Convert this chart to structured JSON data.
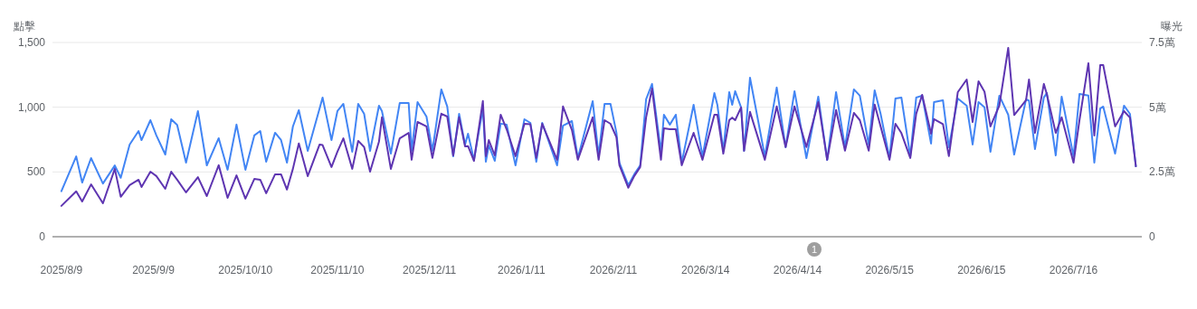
{
  "chart_data": {
    "type": "line",
    "ylabel": "點擊",
    "y2label": "曝光",
    "x": [
      "2025-08-09",
      "2025-08-14",
      "2025-08-16",
      "2025-08-19",
      "2025-08-23",
      "2025-08-27",
      "2025-08-29",
      "2025-09-01",
      "2025-09-04",
      "2025-09-05",
      "2025-09-08",
      "2025-09-10",
      "2025-09-13",
      "2025-09-15",
      "2025-09-17",
      "2025-09-20",
      "2025-09-24",
      "2025-09-27",
      "2025-10-01",
      "2025-10-04",
      "2025-10-07",
      "2025-10-10",
      "2025-10-13",
      "2025-10-15",
      "2025-10-17",
      "2025-10-20",
      "2025-10-22",
      "2025-10-24",
      "2025-10-26",
      "2025-10-28",
      "2025-10-31",
      "2025-11-04",
      "2025-11-05",
      "2025-11-08",
      "2025-11-10",
      "2025-11-12",
      "2025-11-15",
      "2025-11-17",
      "2025-11-19",
      "2025-11-21",
      "2025-11-24",
      "2025-11-25",
      "2025-11-28",
      "2025-12-01",
      "2025-12-04",
      "2025-12-05",
      "2025-12-07",
      "2025-12-10",
      "2025-12-12",
      "2025-12-15",
      "2025-12-17",
      "2025-12-19",
      "2025-12-21",
      "2025-12-23",
      "2025-12-24",
      "2025-12-26",
      "2025-12-29",
      "2025-12-30",
      "2025-12-31",
      "2026-01-02",
      "2026-01-04",
      "2026-01-06",
      "2026-01-09",
      "2026-01-12",
      "2026-01-14",
      "2026-01-16",
      "2026-01-18",
      "2026-01-23",
      "2026-01-25",
      "2026-01-28",
      "2026-01-30",
      "2026-02-04",
      "2026-02-06",
      "2026-02-08",
      "2026-02-10",
      "2026-02-12",
      "2026-02-13",
      "2026-02-16",
      "2026-02-18",
      "2026-02-20",
      "2026-02-22",
      "2026-02-24",
      "2026-02-27",
      "2026-02-28",
      "2026-03-02",
      "2026-03-04",
      "2026-03-06",
      "2026-03-10",
      "2026-03-13",
      "2026-03-17",
      "2026-03-18",
      "2026-03-20",
      "2026-03-22",
      "2026-03-23",
      "2026-03-24",
      "2026-03-26",
      "2026-03-27",
      "2026-03-29",
      "2026-04-03",
      "2026-04-07",
      "2026-04-10",
      "2026-04-13",
      "2026-04-17",
      "2026-04-21",
      "2026-04-24",
      "2026-04-27",
      "2026-04-30",
      "2026-05-03",
      "2026-05-05",
      "2026-05-08",
      "2026-05-10",
      "2026-05-12",
      "2026-05-15",
      "2026-05-17",
      "2026-05-19",
      "2026-05-22",
      "2026-05-24",
      "2026-05-26",
      "2026-05-29",
      "2026-05-30",
      "2026-06-02",
      "2026-06-04",
      "2026-06-07",
      "2026-06-10",
      "2026-06-12",
      "2026-06-14",
      "2026-06-16",
      "2026-06-18",
      "2026-06-21",
      "2026-06-24",
      "2026-06-26",
      "2026-06-30",
      "2026-07-01",
      "2026-07-03",
      "2026-07-06",
      "2026-07-07",
      "2026-07-10",
      "2026-07-12",
      "2026-07-16",
      "2026-07-18",
      "2026-07-21",
      "2026-07-23",
      "2026-07-25",
      "2026-07-26",
      "2026-07-30",
      "2026-08-02",
      "2026-08-04",
      "2026-08-06"
    ],
    "series": [
      {
        "color": "#4285f4",
        "values": [
          351,
          620,
          418,
          607,
          411,
          550,
          455,
          712,
          816,
          746,
          900,
          782,
          635,
          907,
          863,
          572,
          970,
          551,
          761,
          517,
          866,
          517,
          782,
          816,
          579,
          803,
          747,
          572,
          851,
          977,
          663,
          991,
          1075,
          747,
          970,
          1026,
          656,
          1026,
          949,
          663,
          1012,
          970,
          642,
          1033,
          1033,
          663,
          1040,
          928,
          663,
          1138,
          1005,
          621,
          949,
          712,
          796,
          593,
          991,
          579,
          705,
          586,
          873,
          866,
          551,
          907,
          879,
          579,
          879,
          551,
          858,
          893,
          607,
          1047,
          628,
          1026,
          1026,
          803,
          572,
          398,
          482,
          551,
          1061,
          1180,
          656,
          942,
          866,
          942,
          572,
          1019,
          621,
          1110,
          1019,
          663,
          1117,
          1019,
          1124,
          998,
          663,
          1228,
          621,
          1152,
          691,
          1124,
          607,
          1082,
          593,
          1117,
          691,
          1138,
          1089,
          712,
          1131,
          949,
          607,
          1068,
          1075,
          621,
          1075,
          1089,
          719,
          1040,
          1054,
          691,
          1068,
          1012,
          712,
          1040,
          1000,
          656,
          1089,
          942,
          635,
          1061,
          1050,
          677,
          1075,
          1110,
          628,
          1082,
          621,
          1103,
          1090,
          572,
          990,
          1005,
          642,
          1012,
          949,
          544
        ]
      },
      {
        "color": "#5e35b1",
        "axis": "y2",
        "values": [
          1.19,
          1.75,
          1.36,
          2.02,
          1.29,
          2.62,
          1.54,
          1.99,
          2.2,
          1.92,
          2.51,
          2.34,
          1.85,
          2.51,
          2.2,
          1.71,
          2.3,
          1.57,
          2.76,
          1.5,
          2.37,
          1.47,
          2.23,
          2.2,
          1.68,
          2.41,
          2.41,
          1.82,
          2.62,
          3.6,
          2.34,
          3.56,
          3.54,
          2.69,
          3.28,
          3.8,
          2.62,
          3.7,
          3.46,
          2.51,
          3.67,
          4.61,
          2.62,
          3.8,
          4.01,
          2.97,
          4.43,
          4.26,
          3.04,
          4.75,
          4.64,
          3.14,
          4.61,
          3.49,
          3.5,
          2.93,
          5.24,
          3.11,
          3.73,
          3.14,
          4.71,
          4.15,
          3.11,
          4.36,
          4.34,
          3.04,
          4.36,
          2.97,
          5.03,
          4.12,
          2.97,
          4.61,
          2.97,
          4.5,
          4.36,
          3.84,
          2.76,
          1.89,
          2.34,
          2.69,
          4.61,
          5.72,
          2.97,
          4.19,
          4.15,
          4.15,
          2.76,
          4.01,
          2.97,
          4.71,
          4.71,
          3.21,
          4.5,
          4.6,
          4.5,
          4.99,
          3.32,
          4.82,
          2.97,
          5.03,
          3.46,
          5.03,
          3.46,
          5.2,
          2.97,
          4.89,
          3.32,
          4.78,
          4.5,
          3.32,
          5.1,
          4.26,
          2.97,
          4.36,
          4.0,
          3.04,
          4.75,
          5.48,
          3.98,
          4.54,
          4.35,
          3.11,
          5.58,
          6.07,
          4.43,
          6.0,
          5.6,
          4.26,
          5.06,
          7.29,
          4.7,
          5.27,
          6.07,
          4.01,
          5.9,
          5.5,
          4.01,
          4.61,
          2.86,
          4.5,
          6.7,
          3.91,
          6.63,
          6.63,
          4.26,
          4.85,
          4.6,
          2.72
        ]
      }
    ],
    "xlim": [
      "2025-08-06",
      "2026-08-08"
    ],
    "xticks": [
      {
        "value": "2025-08-09",
        "label": "2025/8/9"
      },
      {
        "value": "2025-09-09",
        "label": "2025/9/9"
      },
      {
        "value": "2025-10-10",
        "label": "2025/10/10"
      },
      {
        "value": "2025-11-10",
        "label": "2025/11/10"
      },
      {
        "value": "2025-12-11",
        "label": "2025/12/11"
      },
      {
        "value": "2026-01-11",
        "label": "2026/1/11"
      },
      {
        "value": "2026-02-11",
        "label": "2026/2/11"
      },
      {
        "value": "2026-03-14",
        "label": "2026/3/14"
      },
      {
        "value": "2026-04-14",
        "label": "2026/4/14"
      },
      {
        "value": "2026-05-15",
        "label": "2026/5/15"
      },
      {
        "value": "2026-06-15",
        "label": "2026/6/15"
      },
      {
        "value": "2026-07-16",
        "label": "2026/7/16"
      }
    ],
    "ylim": [
      0,
      1500
    ],
    "yticks": [
      0,
      500,
      {
        "value": 1000,
        "label": "1,000"
      },
      {
        "value": 1500,
        "label": "1,500"
      }
    ],
    "y2lim": [
      0,
      7.5
    ],
    "y2ticks": [
      0,
      {
        "value": 2.5,
        "label": "2.5萬"
      },
      {
        "value": 5,
        "label": "5萬"
      },
      {
        "value": 7.5,
        "label": "7.5萬"
      }
    ],
    "grid": "y",
    "annotations": [
      "1"
    ]
  }
}
